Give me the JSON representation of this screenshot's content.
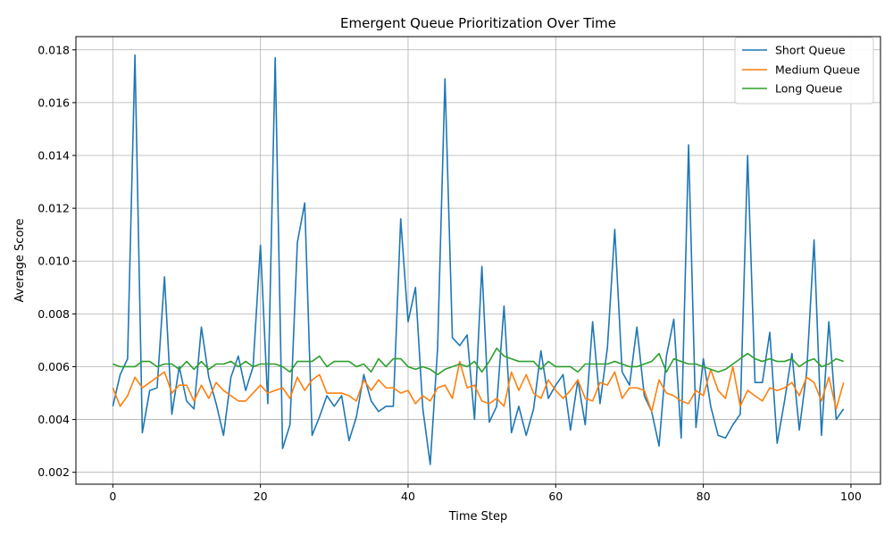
{
  "chart_data": {
    "type": "line",
    "title": "Emergent Queue Prioritization Over Time",
    "xlabel": "Time Step",
    "ylabel": "Average Score",
    "xlim": [
      -5,
      104
    ],
    "ylim": [
      0.00155,
      0.0185
    ],
    "xticks": [
      0,
      20,
      40,
      60,
      80,
      100
    ],
    "xtick_labels": [
      "0",
      "20",
      "40",
      "60",
      "80",
      "100"
    ],
    "yticks": [
      0.002,
      0.004,
      0.006,
      0.008,
      0.01,
      0.012,
      0.014,
      0.016,
      0.018
    ],
    "ytick_labels": [
      "0.002",
      "0.004",
      "0.006",
      "0.008",
      "0.010",
      "0.012",
      "0.014",
      "0.016",
      "0.018"
    ],
    "grid": true,
    "legend_position": "top-right",
    "series": [
      {
        "name": "Short Queue",
        "color": "#1f77b4",
        "values": [
          0.0045,
          0.0057,
          0.0063,
          0.0178,
          0.0035,
          0.0051,
          0.0052,
          0.0094,
          0.0042,
          0.006,
          0.0047,
          0.0044,
          0.0075,
          0.0056,
          0.0046,
          0.0034,
          0.0056,
          0.0064,
          0.0051,
          0.006,
          0.0106,
          0.0046,
          0.0177,
          0.0029,
          0.0038,
          0.0107,
          0.0122,
          0.0034,
          0.0041,
          0.0049,
          0.0045,
          0.0049,
          0.0032,
          0.0041,
          0.0057,
          0.0047,
          0.0043,
          0.0045,
          0.0045,
          0.0116,
          0.0077,
          0.009,
          0.0044,
          0.0023,
          0.0067,
          0.0169,
          0.0071,
          0.0068,
          0.0072,
          0.004,
          0.0098,
          0.0039,
          0.0045,
          0.0083,
          0.0035,
          0.0045,
          0.0034,
          0.0044,
          0.0066,
          0.0048,
          0.0053,
          0.0057,
          0.0036,
          0.0055,
          0.0038,
          0.0077,
          0.0046,
          0.0067,
          0.0112,
          0.0058,
          0.0053,
          0.0075,
          0.0049,
          0.0043,
          0.003,
          0.0064,
          0.0078,
          0.0033,
          0.0144,
          0.0037,
          0.0063,
          0.0045,
          0.0034,
          0.0033,
          0.0038,
          0.0042,
          0.014,
          0.0054,
          0.0054,
          0.0073,
          0.0031,
          0.0047,
          0.0065,
          0.0036,
          0.0058,
          0.0108,
          0.0034,
          0.0077,
          0.004,
          0.0044
        ]
      },
      {
        "name": "Medium Queue",
        "color": "#ff7f0e",
        "values": [
          0.0052,
          0.0045,
          0.0049,
          0.0056,
          0.0052,
          0.0054,
          0.0056,
          0.0058,
          0.005,
          0.0053,
          0.0053,
          0.0047,
          0.0053,
          0.0048,
          0.0054,
          0.0051,
          0.0049,
          0.0047,
          0.0047,
          0.005,
          0.0053,
          0.005,
          0.0051,
          0.0052,
          0.0048,
          0.0056,
          0.0051,
          0.0055,
          0.0057,
          0.005,
          0.005,
          0.005,
          0.0049,
          0.0047,
          0.0055,
          0.0051,
          0.0055,
          0.0052,
          0.0052,
          0.005,
          0.0051,
          0.0046,
          0.0049,
          0.0047,
          0.0052,
          0.0053,
          0.0048,
          0.0062,
          0.0052,
          0.0053,
          0.0047,
          0.0046,
          0.0048,
          0.0045,
          0.0058,
          0.0051,
          0.0057,
          0.005,
          0.0048,
          0.0055,
          0.0051,
          0.0048,
          0.0051,
          0.0055,
          0.0048,
          0.0047,
          0.0054,
          0.0053,
          0.0058,
          0.0048,
          0.0052,
          0.0052,
          0.0051,
          0.0043,
          0.0055,
          0.005,
          0.0049,
          0.0047,
          0.0046,
          0.0051,
          0.0049,
          0.0059,
          0.0051,
          0.0048,
          0.006,
          0.0045,
          0.0051,
          0.0049,
          0.0047,
          0.0052,
          0.0051,
          0.0052,
          0.0054,
          0.0049,
          0.0056,
          0.0054,
          0.0047,
          0.0056,
          0.0044,
          0.0054
        ]
      },
      {
        "name": "Long Queue",
        "color": "#2ca02c",
        "values": [
          0.0061,
          0.006,
          0.006,
          0.006,
          0.0062,
          0.0062,
          0.006,
          0.0061,
          0.0061,
          0.0059,
          0.0062,
          0.0059,
          0.0062,
          0.0059,
          0.0061,
          0.0061,
          0.0062,
          0.006,
          0.0062,
          0.006,
          0.0061,
          0.0061,
          0.0061,
          0.006,
          0.0058,
          0.0062,
          0.0062,
          0.0062,
          0.0064,
          0.006,
          0.0062,
          0.0062,
          0.0062,
          0.006,
          0.0061,
          0.0058,
          0.0063,
          0.006,
          0.0063,
          0.0063,
          0.006,
          0.0059,
          0.006,
          0.0059,
          0.0057,
          0.0059,
          0.006,
          0.0061,
          0.006,
          0.0062,
          0.0058,
          0.0062,
          0.0067,
          0.0064,
          0.0063,
          0.0062,
          0.0062,
          0.0062,
          0.0059,
          0.0062,
          0.006,
          0.006,
          0.006,
          0.0058,
          0.0061,
          0.0061,
          0.0061,
          0.0061,
          0.0062,
          0.0061,
          0.006,
          0.006,
          0.0061,
          0.0062,
          0.0065,
          0.0058,
          0.0063,
          0.0062,
          0.0061,
          0.0061,
          0.006,
          0.0059,
          0.0058,
          0.0059,
          0.0061,
          0.0063,
          0.0065,
          0.0063,
          0.0062,
          0.0063,
          0.0062,
          0.0062,
          0.0063,
          0.006,
          0.0062,
          0.0063,
          0.006,
          0.0061,
          0.0063,
          0.0062
        ]
      }
    ]
  }
}
